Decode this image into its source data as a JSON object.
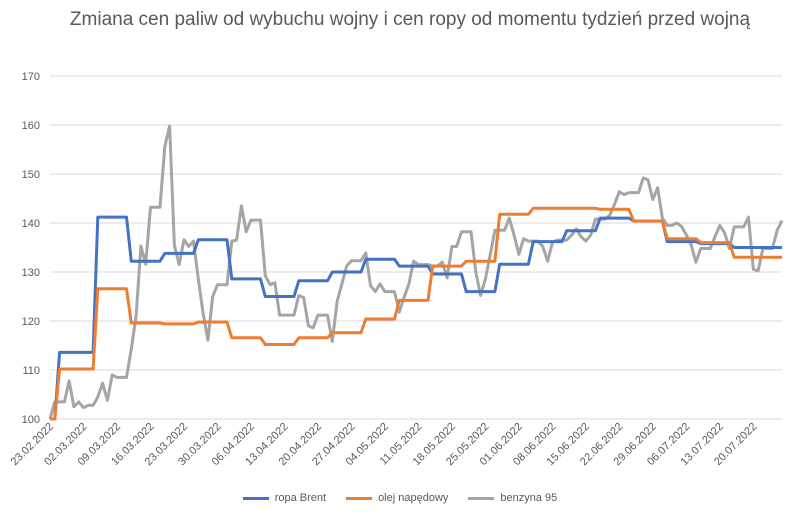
{
  "chart_data": {
    "type": "line",
    "title": "Zmiana cen paliw od wybuchu wojny i cen ropy od momentu tydzień przed wojną",
    "xlabel": "",
    "ylabel": "",
    "ylim": [
      100,
      170
    ],
    "yticks": [
      100,
      110,
      120,
      130,
      140,
      150,
      160,
      170
    ],
    "grid": true,
    "legend_position": "bottom",
    "date_range": [
      "23.02.2022",
      "26.07.2022"
    ],
    "x_tick_labels": [
      "23.02.2022",
      "02.03.2022",
      "09.03.2022",
      "16.03.2022",
      "23.03.2022",
      "30.03.2022",
      "06.04.2022",
      "13.04.2022",
      "20.04.2022",
      "27.04.2022",
      "04.05.2022",
      "11.05.2022",
      "18.05.2022",
      "25.05.2022",
      "01.06.2022",
      "08.06.2022",
      "15.06.2022",
      "22.06.2022",
      "29.06.2022",
      "06.07.2022",
      "13.07.2022",
      "20.07.2022"
    ],
    "series": [
      {
        "name": "ropa Brent",
        "color": "#4472C4",
        "points": [
          [
            "23.02.2022",
            100
          ],
          [
            "24.02.2022",
            100
          ],
          [
            "25.02.2022",
            113.6
          ],
          [
            "04.03.2022",
            113.6
          ],
          [
            "05.03.2022",
            141.2
          ],
          [
            "11.03.2022",
            141.2
          ],
          [
            "12.03.2022",
            132.2
          ],
          [
            "18.03.2022",
            132.2
          ],
          [
            "19.03.2022",
            133.8
          ],
          [
            "25.03.2022",
            133.8
          ],
          [
            "26.03.2022",
            136.6
          ],
          [
            "01.04.2022",
            136.6
          ],
          [
            "02.04.2022",
            128.6
          ],
          [
            "08.04.2022",
            128.6
          ],
          [
            "09.04.2022",
            125
          ],
          [
            "15.04.2022",
            125
          ],
          [
            "16.04.2022",
            128.2
          ],
          [
            "22.04.2022",
            128.2
          ],
          [
            "23.04.2022",
            130
          ],
          [
            "29.04.2022",
            130
          ],
          [
            "30.04.2022",
            132.6
          ],
          [
            "06.05.2022",
            132.6
          ],
          [
            "07.05.2022",
            131.2
          ],
          [
            "13.05.2022",
            131.2
          ],
          [
            "14.05.2022",
            129.6
          ],
          [
            "20.05.2022",
            129.6
          ],
          [
            "21.05.2022",
            126
          ],
          [
            "27.05.2022",
            126
          ],
          [
            "28.05.2022",
            131.6
          ],
          [
            "03.06.2022",
            131.6
          ],
          [
            "04.06.2022",
            136.2
          ],
          [
            "10.06.2022",
            136.2
          ],
          [
            "11.06.2022",
            138.4
          ],
          [
            "17.06.2022",
            138.4
          ],
          [
            "18.06.2022",
            141
          ],
          [
            "24.06.2022",
            141
          ],
          [
            "25.06.2022",
            140.4
          ],
          [
            "01.07.2022",
            140.4
          ],
          [
            "02.07.2022",
            136.2
          ],
          [
            "08.07.2022",
            136.2
          ],
          [
            "09.07.2022",
            135.8
          ],
          [
            "15.07.2022",
            135.8
          ],
          [
            "16.07.2022",
            135
          ],
          [
            "26.07.2022",
            135
          ]
        ]
      },
      {
        "name": "olej napędowy",
        "color": "#ED7D31",
        "points": [
          [
            "23.02.2022",
            100
          ],
          [
            "24.02.2022",
            100
          ],
          [
            "25.02.2022",
            110.2
          ],
          [
            "04.03.2022",
            110.2
          ],
          [
            "05.03.2022",
            126.6
          ],
          [
            "11.03.2022",
            126.6
          ],
          [
            "12.03.2022",
            119.6
          ],
          [
            "18.03.2022",
            119.6
          ],
          [
            "19.03.2022",
            119.4
          ],
          [
            "25.03.2022",
            119.4
          ],
          [
            "26.03.2022",
            119.8
          ],
          [
            "01.04.2022",
            119.8
          ],
          [
            "02.04.2022",
            116.6
          ],
          [
            "08.04.2022",
            116.6
          ],
          [
            "09.04.2022",
            115.2
          ],
          [
            "15.04.2022",
            115.2
          ],
          [
            "16.04.2022",
            116.6
          ],
          [
            "22.04.2022",
            116.6
          ],
          [
            "23.04.2022",
            117.6
          ],
          [
            "29.04.2022",
            117.6
          ],
          [
            "30.04.2022",
            120.4
          ],
          [
            "06.05.2022",
            120.4
          ],
          [
            "07.05.2022",
            124.2
          ],
          [
            "13.05.2022",
            124.2
          ],
          [
            "14.05.2022",
            131.2
          ],
          [
            "20.05.2022",
            131.2
          ],
          [
            "21.05.2022",
            132.2
          ],
          [
            "27.05.2022",
            132.2
          ],
          [
            "28.05.2022",
            141.8
          ],
          [
            "03.06.2022",
            141.8
          ],
          [
            "04.06.2022",
            143
          ],
          [
            "10.06.2022",
            143
          ],
          [
            "11.06.2022",
            143
          ],
          [
            "17.06.2022",
            143
          ],
          [
            "18.06.2022",
            142.8
          ],
          [
            "24.06.2022",
            142.8
          ],
          [
            "25.06.2022",
            140.4
          ],
          [
            "01.07.2022",
            140.4
          ],
          [
            "02.07.2022",
            136.8
          ],
          [
            "08.07.2022",
            136.8
          ],
          [
            "09.07.2022",
            136
          ],
          [
            "15.07.2022",
            136
          ],
          [
            "16.07.2022",
            133
          ],
          [
            "26.07.2022",
            133
          ]
        ]
      },
      {
        "name": "benzyna 95",
        "color": "#A5A5A5",
        "points": [
          [
            "23.02.2022",
            100
          ],
          [
            "24.02.2022",
            103.5
          ],
          [
            "25.02.2022",
            103.5
          ],
          [
            "26.02.2022",
            103.5
          ],
          [
            "27.02.2022",
            107.8
          ],
          [
            "28.02.2022",
            102.5
          ],
          [
            "01.03.2022",
            103.5
          ],
          [
            "02.03.2022",
            102.3
          ],
          [
            "03.03.2022",
            102.8
          ],
          [
            "04.03.2022",
            102.8
          ],
          [
            "05.03.2022",
            104.5
          ],
          [
            "06.03.2022",
            107.3
          ],
          [
            "07.03.2022",
            103.8
          ],
          [
            "08.03.2022",
            109
          ],
          [
            "09.03.2022",
            108.5
          ],
          [
            "10.03.2022",
            108.5
          ],
          [
            "11.03.2022",
            108.5
          ],
          [
            "12.03.2022",
            114.3
          ],
          [
            "13.03.2022",
            121
          ],
          [
            "14.03.2022",
            135.3
          ],
          [
            "15.03.2022",
            131.6
          ],
          [
            "16.03.2022",
            143.2
          ],
          [
            "17.03.2022",
            143.2
          ],
          [
            "18.03.2022",
            143.2
          ],
          [
            "19.03.2022",
            155.6
          ],
          [
            "20.03.2022",
            159.8
          ],
          [
            "21.03.2022",
            135.4
          ],
          [
            "22.03.2022",
            131.5
          ],
          [
            "23.03.2022",
            136.6
          ],
          [
            "24.03.2022",
            135.2
          ],
          [
            "25.03.2022",
            136.3
          ],
          [
            "26.03.2022",
            128.6
          ],
          [
            "27.03.2022",
            121.6
          ],
          [
            "28.03.2022",
            116.1
          ],
          [
            "29.03.2022",
            125
          ],
          [
            "30.03.2022",
            127.4
          ],
          [
            "31.03.2022",
            127.4
          ],
          [
            "01.04.2022",
            127.4
          ],
          [
            "02.04.2022",
            136.3
          ],
          [
            "03.04.2022",
            136.5
          ],
          [
            "04.04.2022",
            143.5
          ],
          [
            "05.04.2022",
            138.2
          ],
          [
            "06.04.2022",
            140.6
          ],
          [
            "07.04.2022",
            140.6
          ],
          [
            "08.04.2022",
            140.6
          ],
          [
            "09.04.2022",
            129.2
          ],
          [
            "10.04.2022",
            127.4
          ],
          [
            "11.04.2022",
            127.8
          ],
          [
            "12.04.2022",
            121.2
          ],
          [
            "13.04.2022",
            121.2
          ],
          [
            "14.04.2022",
            121.2
          ],
          [
            "15.04.2022",
            121.2
          ],
          [
            "16.04.2022",
            125.2
          ],
          [
            "17.04.2022",
            124.8
          ],
          [
            "18.04.2022",
            119
          ],
          [
            "19.04.2022",
            118.6
          ],
          [
            "20.04.2022",
            121.2
          ],
          [
            "21.04.2022",
            121.2
          ],
          [
            "22.04.2022",
            121.2
          ],
          [
            "23.04.2022",
            115.8
          ],
          [
            "24.04.2022",
            124
          ],
          [
            "25.04.2022",
            127.5
          ],
          [
            "26.04.2022",
            131.2
          ],
          [
            "27.04.2022",
            132.3
          ],
          [
            "28.04.2022",
            132.3
          ],
          [
            "29.04.2022",
            132.3
          ],
          [
            "30.04.2022",
            133.9
          ],
          [
            "01.05.2022",
            127.2
          ],
          [
            "02.05.2022",
            126
          ],
          [
            "03.05.2022",
            127.6
          ],
          [
            "04.05.2022",
            126
          ],
          [
            "05.05.2022",
            126
          ],
          [
            "06.05.2022",
            126
          ],
          [
            "07.05.2022",
            121.8
          ],
          [
            "08.05.2022",
            124.8
          ],
          [
            "09.05.2022",
            127.5
          ],
          [
            "10.05.2022",
            132.2
          ],
          [
            "11.05.2022",
            131.5
          ],
          [
            "12.05.2022",
            131.5
          ],
          [
            "13.05.2022",
            131.5
          ],
          [
            "14.05.2022",
            131.2
          ],
          [
            "15.05.2022",
            131.2
          ],
          [
            "16.05.2022",
            132
          ],
          [
            "17.05.2022",
            128.8
          ],
          [
            "18.05.2022",
            135.2
          ],
          [
            "19.05.2022",
            135.2
          ],
          [
            "20.05.2022",
            138.2
          ],
          [
            "21.05.2022",
            138.2
          ],
          [
            "22.05.2022",
            138.2
          ],
          [
            "23.05.2022",
            130
          ],
          [
            "24.05.2022",
            125.2
          ],
          [
            "25.05.2022",
            128.6
          ],
          [
            "26.05.2022",
            133.5
          ],
          [
            "27.05.2022",
            138.5
          ],
          [
            "28.05.2022",
            138.5
          ],
          [
            "29.05.2022",
            138.5
          ],
          [
            "30.05.2022",
            141
          ],
          [
            "31.05.2022",
            137.5
          ],
          [
            "01.06.2022",
            133.6
          ],
          [
            "02.06.2022",
            136.8
          ],
          [
            "03.06.2022",
            136.3
          ],
          [
            "04.06.2022",
            136.3
          ],
          [
            "05.06.2022",
            136.3
          ],
          [
            "06.06.2022",
            135.2
          ],
          [
            "07.06.2022",
            132.2
          ],
          [
            "08.06.2022",
            136
          ],
          [
            "09.06.2022",
            136.5
          ],
          [
            "10.06.2022",
            136.5
          ],
          [
            "11.06.2022",
            136.5
          ],
          [
            "12.06.2022",
            137.5
          ],
          [
            "13.06.2022",
            138.8
          ],
          [
            "14.06.2022",
            137.2
          ],
          [
            "15.06.2022",
            136.3
          ],
          [
            "16.06.2022",
            137.5
          ],
          [
            "17.06.2022",
            140.8
          ],
          [
            "18.06.2022",
            140.8
          ],
          [
            "19.06.2022",
            140.8
          ],
          [
            "20.06.2022",
            141.6
          ],
          [
            "21.06.2022",
            143.8
          ],
          [
            "22.06.2022",
            146.4
          ],
          [
            "23.06.2022",
            145.8
          ],
          [
            "24.06.2022",
            146.2
          ],
          [
            "25.06.2022",
            146.2
          ],
          [
            "26.06.2022",
            146.2
          ],
          [
            "27.06.2022",
            149.2
          ],
          [
            "28.06.2022",
            148.8
          ],
          [
            "29.06.2022",
            144.8
          ],
          [
            "30.06.2022",
            147.2
          ],
          [
            "01.07.2022",
            141
          ],
          [
            "02.07.2022",
            139.5
          ],
          [
            "03.07.2022",
            139.5
          ],
          [
            "04.07.2022",
            140
          ],
          [
            "05.07.2022",
            139.3
          ],
          [
            "06.07.2022",
            137.6
          ],
          [
            "07.07.2022",
            135.6
          ],
          [
            "08.07.2022",
            132
          ],
          [
            "09.07.2022",
            134.8
          ],
          [
            "10.07.2022",
            134.8
          ],
          [
            "11.07.2022",
            134.8
          ],
          [
            "12.07.2022",
            137.2
          ],
          [
            "13.07.2022",
            139.5
          ],
          [
            "14.07.2022",
            138
          ],
          [
            "15.07.2022",
            134.8
          ],
          [
            "16.07.2022",
            139.2
          ],
          [
            "17.07.2022",
            139.2
          ],
          [
            "18.07.2022",
            139.2
          ],
          [
            "19.07.2022",
            141.2
          ],
          [
            "20.07.2022",
            130.6
          ],
          [
            "21.07.2022",
            130.2
          ],
          [
            "22.07.2022",
            134.8
          ],
          [
            "23.07.2022",
            134.8
          ],
          [
            "24.07.2022",
            134.8
          ],
          [
            "25.07.2022",
            138.5
          ],
          [
            "26.07.2022",
            140.5
          ]
        ]
      }
    ]
  }
}
